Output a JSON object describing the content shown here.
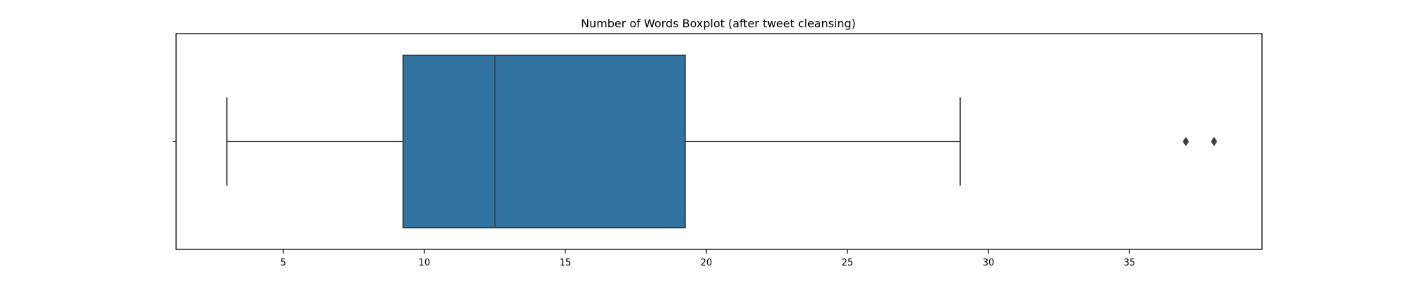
{
  "chart_data": {
    "type": "boxplot",
    "title": "Number of Words Boxplot (after tweet cleansing)",
    "xlabel": "",
    "ylabel": "",
    "orientation": "horizontal",
    "xlim": [
      1.2,
      39.7
    ],
    "xticks": [
      5,
      10,
      15,
      20,
      25,
      30,
      35
    ],
    "tick_labels": [
      "5",
      "10",
      "15",
      "20",
      "25",
      "30",
      "35"
    ],
    "grid": false,
    "box": {
      "whisker_low": 3,
      "q1": 9.25,
      "median": 12.5,
      "q3": 19.25,
      "whisker_high": 29,
      "outliers": [
        37,
        38
      ]
    },
    "colors": {
      "box_fill": "#3274a1",
      "lines": "#3f3f3f",
      "axes": "#000000"
    }
  }
}
